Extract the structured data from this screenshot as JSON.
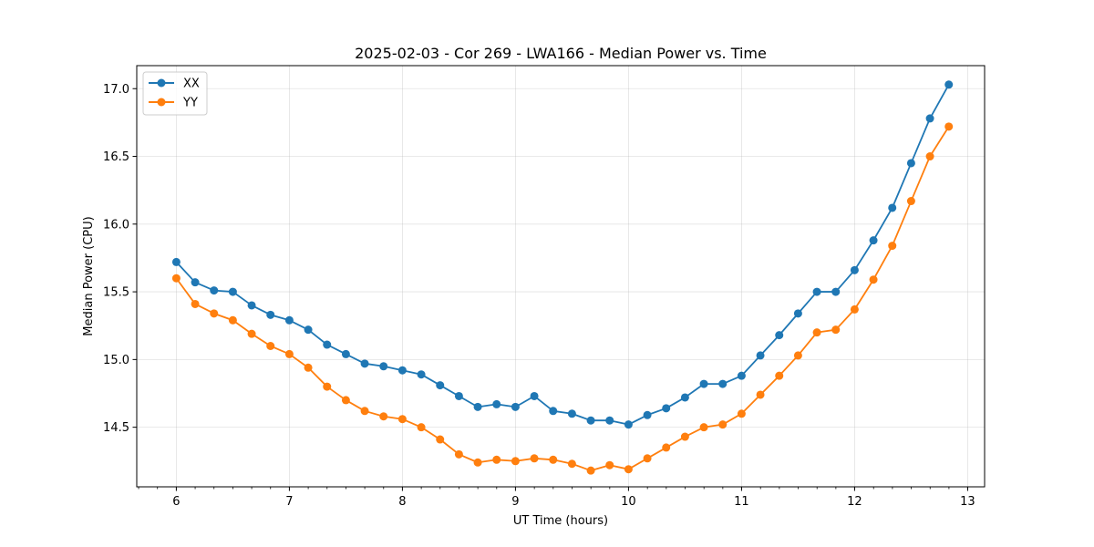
{
  "chart_data": {
    "type": "line",
    "title": "2025-02-03 - Cor 269 - LWA166 - Median Power vs. Time",
    "xlabel": "UT Time (hours)",
    "ylabel": "Median Power (CPU)",
    "xlim": [
      5.65,
      13.15
    ],
    "ylim": [
      14.06,
      17.17
    ],
    "grid": true,
    "legend_position": "upper-left",
    "x_ticks": [
      6,
      7,
      8,
      9,
      10,
      11,
      12,
      13
    ],
    "x_tick_labels": [
      "6",
      "7",
      "8",
      "9",
      "10",
      "11",
      "12",
      "13"
    ],
    "x_minor_step": 0.1667,
    "y_ticks": [
      14.5,
      15.0,
      15.5,
      16.0,
      16.5,
      17.0
    ],
    "y_tick_labels": [
      "14.5",
      "15.0",
      "15.5",
      "16.0",
      "16.5",
      "17.0"
    ],
    "x": [
      6.0,
      6.1667,
      6.3333,
      6.5,
      6.6667,
      6.8333,
      7.0,
      7.1667,
      7.3333,
      7.5,
      7.6667,
      7.8333,
      8.0,
      8.1667,
      8.3333,
      8.5,
      8.6667,
      8.8333,
      9.0,
      9.1667,
      9.3333,
      9.5,
      9.6667,
      9.8333,
      10.0,
      10.1667,
      10.3333,
      10.5,
      10.6667,
      10.8333,
      11.0,
      11.1667,
      11.3333,
      11.5,
      11.6667,
      11.8333,
      12.0,
      12.1667,
      12.3333,
      12.5,
      12.6667,
      12.8333
    ],
    "series": [
      {
        "name": "XX",
        "color": "#1f77b4",
        "values": [
          15.72,
          15.57,
          15.51,
          15.5,
          15.4,
          15.33,
          15.29,
          15.22,
          15.11,
          15.04,
          14.97,
          14.95,
          14.92,
          14.89,
          14.81,
          14.73,
          14.65,
          14.67,
          14.65,
          14.73,
          14.62,
          14.6,
          14.55,
          14.55,
          14.52,
          14.59,
          14.64,
          14.72,
          14.82,
          14.82,
          14.88,
          15.03,
          15.18,
          15.34,
          15.5,
          15.5,
          15.66,
          15.88,
          16.12,
          16.45,
          16.78,
          17.03
        ]
      },
      {
        "name": "YY",
        "color": "#ff7f0e",
        "values": [
          15.6,
          15.41,
          15.34,
          15.29,
          15.19,
          15.1,
          15.04,
          14.94,
          14.8,
          14.7,
          14.62,
          14.58,
          14.56,
          14.5,
          14.41,
          14.3,
          14.24,
          14.26,
          14.25,
          14.27,
          14.26,
          14.23,
          14.18,
          14.22,
          14.19,
          14.27,
          14.35,
          14.43,
          14.5,
          14.52,
          14.6,
          14.74,
          14.88,
          15.03,
          15.2,
          15.22,
          15.37,
          15.59,
          15.84,
          16.17,
          16.5,
          16.72
        ]
      }
    ]
  }
}
